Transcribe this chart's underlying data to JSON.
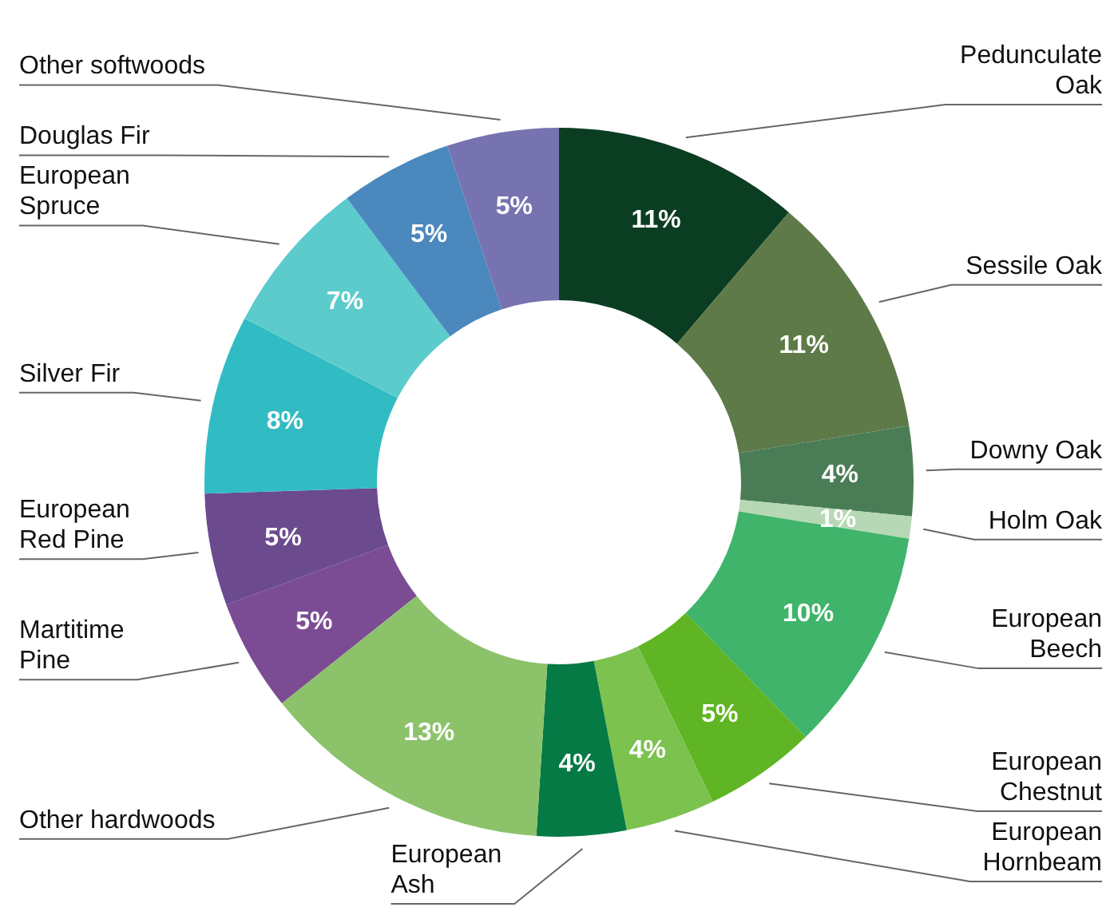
{
  "chart_data": {
    "type": "donut",
    "categories": [
      "Pedunculate Oak",
      "Sessile Oak",
      "Downy Oak",
      "Holm Oak",
      "European Beech",
      "European Chestnut",
      "European Hornbeam",
      "European Ash",
      "Other hardwoods",
      "Martitime Pine",
      "European Red Pine",
      "Silver Fir",
      "European Spruce",
      "Douglas Fir",
      "Other softwoods"
    ],
    "values": [
      11,
      11,
      4,
      1,
      10,
      5,
      4,
      4,
      13,
      5,
      5,
      8,
      7,
      5,
      5
    ],
    "colors": [
      "#0b3d22",
      "#5e7a48",
      "#4a7d56",
      "#b7d8b5",
      "#3fb46a",
      "#5fb523",
      "#7bc24f",
      "#067a45",
      "#8cc26a",
      "#7b4c93",
      "#6b4a8e",
      "#31bcc4",
      "#5ccbcc",
      "#4a88bd",
      "#7773b0"
    ],
    "value_labels": [
      "11%",
      "11%",
      "4%",
      "1%",
      "10%",
      "5%",
      "4%",
      "4%",
      "13%",
      "5%",
      "5%",
      "8%",
      "7%",
      "5%",
      "5%"
    ]
  }
}
